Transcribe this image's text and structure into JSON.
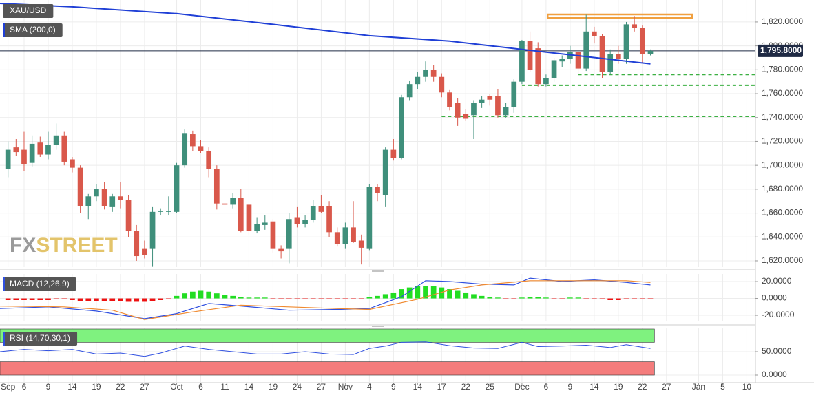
{
  "chart_data": [
    {
      "type": "candlestick",
      "xlim": [
        0,
        94.08
      ],
      "xticks": [
        {
          "value": 1,
          "label": "Sep"
        },
        {
          "value": 3,
          "label": "6"
        },
        {
          "value": 6,
          "label": "9"
        },
        {
          "value": 9,
          "label": "14"
        },
        {
          "value": 12,
          "label": "19"
        },
        {
          "value": 15,
          "label": "22"
        },
        {
          "value": 18,
          "label": "27"
        },
        {
          "value": 22,
          "label": "Oct"
        },
        {
          "value": 25,
          "label": "6"
        },
        {
          "value": 28,
          "label": "11"
        },
        {
          "value": 31,
          "label": "14"
        },
        {
          "value": 34,
          "label": "19"
        },
        {
          "value": 37,
          "label": "24"
        },
        {
          "value": 40,
          "label": "27"
        },
        {
          "value": 43,
          "label": "Nov"
        },
        {
          "value": 46,
          "label": "4"
        },
        {
          "value": 49,
          "label": "9"
        },
        {
          "value": 52,
          "label": "14"
        },
        {
          "value": 55,
          "label": "17"
        },
        {
          "value": 58,
          "label": "22"
        },
        {
          "value": 61,
          "label": "25"
        },
        {
          "value": 65,
          "label": "Dec"
        },
        {
          "value": 68,
          "label": "6"
        },
        {
          "value": 71,
          "label": "9"
        },
        {
          "value": 74,
          "label": "14"
        },
        {
          "value": 77,
          "label": "19"
        },
        {
          "value": 80,
          "label": "22"
        },
        {
          "value": 83,
          "label": "27"
        },
        {
          "value": 87,
          "label": "Jan"
        },
        {
          "value": 90,
          "label": "5"
        },
        {
          "value": 93,
          "label": "10"
        }
      ],
      "ylim": [
        1614.8,
        1838.4
      ],
      "yticks": [
        {
          "value": 1620,
          "label": "1,620.0000"
        },
        {
          "value": 1640,
          "label": "1,640.0000"
        },
        {
          "value": 1660,
          "label": "1,660.0000"
        },
        {
          "value": 1680,
          "label": "1,680.0000"
        },
        {
          "value": 1700,
          "label": "1,700.0000"
        },
        {
          "value": 1720,
          "label": "1,720.0000"
        },
        {
          "value": 1740,
          "label": "1,740.0000"
        },
        {
          "value": 1760,
          "label": "1,760.0000"
        },
        {
          "value": 1780,
          "label": "1,780.0000"
        },
        {
          "value": 1800,
          "label": "1,800.0000"
        },
        {
          "value": 1820,
          "label": "1,820.0000"
        }
      ],
      "grid": true,
      "watermark": [
        "FX",
        "STREET"
      ],
      "current_price": {
        "value": 1795.8,
        "label": "1,795.8000",
        "color": "#1f2a44"
      },
      "levels": [
        {
          "value": 1776,
          "from": 72,
          "color": "#3cb043"
        },
        {
          "value": 1767,
          "from": 65,
          "color": "#3cb043"
        },
        {
          "value": 1741,
          "from": 55,
          "color": "#3cb043"
        }
      ],
      "zone": {
        "low": 1823.4,
        "high": 1826.3,
        "from": 68.2,
        "to": 86.2,
        "color": "#f0a040"
      },
      "series": [
        {
          "name": "XAU/USD",
          "up_color": "#3f8f7b",
          "down_color": "#d9584b",
          "x": [
            1,
            2,
            3,
            4,
            5,
            6,
            7,
            8,
            9,
            10,
            11,
            12,
            13,
            14,
            15,
            16,
            17,
            18,
            19,
            20,
            21,
            22,
            23,
            24,
            25,
            26,
            27,
            28,
            29,
            30,
            31,
            32,
            33,
            34,
            35,
            36,
            37,
            38,
            39,
            40,
            41,
            42,
            43,
            44,
            45,
            46,
            47,
            48,
            49,
            50,
            51,
            52,
            53,
            54,
            55,
            56,
            57,
            58,
            59,
            60,
            61,
            62,
            63,
            64,
            65,
            66,
            67,
            68,
            69,
            70,
            71,
            72,
            73,
            74,
            75,
            76,
            77,
            78,
            79,
            80,
            81
          ],
          "open": [
            1697,
            1715,
            1713,
            1702,
            1719,
            1709,
            1717,
            1725,
            1705,
            1698,
            1666,
            1674,
            1680,
            1665,
            1674,
            1671,
            1645,
            1630,
            1630,
            1661,
            1661,
            1661,
            1700,
            1726,
            1716,
            1712,
            1697,
            1668,
            1667,
            1673,
            1667,
            1645,
            1650,
            1653,
            1630,
            1630,
            1656,
            1651,
            1654,
            1666,
            1666,
            1644,
            1634,
            1648,
            1637,
            1630,
            1682,
            1675,
            1713,
            1706,
            1757,
            1768,
            1774,
            1780,
            1774,
            1761,
            1752,
            1743,
            1742,
            1752,
            1758,
            1758,
            1742,
            1749,
            1770,
            1804,
            1798,
            1768,
            1773,
            1787,
            1789,
            1795,
            1781,
            1812,
            1808,
            1778,
            1793,
            1789,
            1818,
            1815,
            1793
          ],
          "high": [
            1720,
            1722,
            1728,
            1725,
            1724,
            1728,
            1735,
            1728,
            1707,
            1700,
            1676,
            1684,
            1686,
            1676,
            1686,
            1675,
            1650,
            1637,
            1665,
            1664,
            1674,
            1702,
            1730,
            1729,
            1721,
            1715,
            1700,
            1673,
            1677,
            1680,
            1668,
            1656,
            1658,
            1655,
            1633,
            1660,
            1665,
            1658,
            1671,
            1675,
            1670,
            1648,
            1652,
            1670,
            1642,
            1684,
            1684,
            1715,
            1722,
            1759,
            1771,
            1778,
            1787,
            1784,
            1777,
            1763,
            1756,
            1747,
            1754,
            1758,
            1760,
            1764,
            1752,
            1772,
            1805,
            1812,
            1803,
            1776,
            1790,
            1792,
            1800,
            1797,
            1826,
            1816,
            1810,
            1797,
            1800,
            1820,
            1825,
            1817,
            1797
          ],
          "low": [
            1690,
            1708,
            1695,
            1699,
            1707,
            1705,
            1713,
            1700,
            1694,
            1660,
            1655,
            1670,
            1663,
            1661,
            1664,
            1640,
            1620,
            1622,
            1615,
            1658,
            1658,
            1660,
            1698,
            1712,
            1710,
            1690,
            1663,
            1663,
            1664,
            1644,
            1642,
            1643,
            1646,
            1627,
            1622,
            1618,
            1648,
            1648,
            1652,
            1660,
            1640,
            1632,
            1630,
            1635,
            1617,
            1629,
            1670,
            1665,
            1704,
            1705,
            1754,
            1764,
            1770,
            1770,
            1757,
            1746,
            1733,
            1737,
            1722,
            1748,
            1750,
            1740,
            1740,
            1744,
            1768,
            1778,
            1766,
            1766,
            1770,
            1782,
            1785,
            1776,
            1779,
            1802,
            1773,
            1776,
            1785,
            1785,
            1812,
            1786,
            1792
          ],
          "close": [
            1713,
            1711,
            1701,
            1718,
            1709,
            1717,
            1725,
            1703,
            1698,
            1666,
            1674,
            1680,
            1666,
            1674,
            1671,
            1645,
            1624,
            1625,
            1661,
            1662,
            1662,
            1700,
            1727,
            1716,
            1712,
            1697,
            1668,
            1667,
            1673,
            1645,
            1645,
            1651,
            1652,
            1630,
            1628,
            1655,
            1651,
            1654,
            1666,
            1661,
            1644,
            1634,
            1648,
            1636,
            1631,
            1682,
            1677,
            1713,
            1706,
            1757,
            1768,
            1774,
            1780,
            1774,
            1761,
            1749,
            1740,
            1739,
            1752,
            1755,
            1755,
            1742,
            1749,
            1770,
            1804,
            1780,
            1768,
            1773,
            1788,
            1789,
            1795,
            1781,
            1812,
            1808,
            1778,
            1793,
            1789,
            1818,
            1815,
            1793,
            1795.8
          ]
        },
        {
          "name": "SMA (200,0)",
          "type": "line",
          "color": "#1f3fd6",
          "x": [
            0,
            9,
            22,
            34,
            46,
            56,
            65,
            73,
            81
          ],
          "values": [
            1835.5,
            1832.7,
            1827,
            1818,
            1808.5,
            1804,
            1797,
            1791,
            1785
          ]
        }
      ]
    },
    {
      "type": "macd",
      "title": "MACD (12,26,9)",
      "ylim": [
        -27.3,
        29
      ],
      "yticks": [
        {
          "value": -20,
          "label": "-20.0000"
        },
        {
          "value": 0,
          "label": "0.0000"
        },
        {
          "value": 20,
          "label": "20.0000"
        }
      ],
      "histogram": {
        "pos_color": "#22dd22",
        "neg_color": "#ee1111",
        "values": [
          -2,
          -2,
          -2,
          -2,
          -2,
          -2,
          -1,
          -1,
          -2,
          -3,
          -3,
          -3,
          -3,
          -3,
          -3,
          -4,
          -4,
          -4,
          -3,
          -2,
          -1,
          3,
          6,
          8,
          9,
          8,
          6,
          4,
          3,
          2,
          1,
          1,
          1,
          -1,
          -1,
          -1,
          -1,
          -1,
          -1,
          -1,
          -1,
          -1,
          -1,
          -1,
          -1,
          2,
          3,
          5,
          7,
          11,
          13,
          15,
          15,
          15,
          13,
          11,
          9,
          7,
          5,
          3,
          2,
          1,
          -1,
          -1,
          1,
          2,
          2,
          1,
          -1,
          -1,
          1,
          1,
          -1,
          -1,
          -1,
          -2,
          -2,
          -1,
          -1,
          -1,
          -1
        ]
      },
      "series": [
        {
          "color": "#3050e0",
          "x": [
            0,
            6,
            12,
            18,
            22,
            26,
            30,
            36,
            42,
            46,
            50,
            53,
            56,
            60,
            64,
            66,
            70,
            74,
            78,
            81
          ],
          "values": [
            -12,
            -10,
            -15,
            -24,
            -18,
            -6,
            -9,
            -14,
            -13,
            -12,
            2,
            21,
            20,
            17,
            16,
            24,
            20,
            22,
            19,
            16
          ]
        },
        {
          "color": "#f08a30",
          "x": [
            0,
            8,
            14,
            18,
            24,
            30,
            36,
            42,
            46,
            52,
            56,
            60,
            66,
            72,
            78,
            81
          ],
          "values": [
            -9,
            -10,
            -14,
            -25,
            -16,
            -8,
            -10,
            -12,
            -13,
            -1,
            10,
            16,
            21,
            21,
            21,
            19
          ]
        }
      ]
    },
    {
      "type": "rsi",
      "title": "RSI (14,70,30,1)",
      "ylim": [
        -14.7,
        100
      ],
      "yticks": [
        {
          "value": 0,
          "label": "0.0000"
        },
        {
          "value": 50,
          "label": "50.0000"
        }
      ],
      "zones": [
        {
          "low": 70,
          "high": 100,
          "color": "#7ff27f"
        },
        {
          "low": 0,
          "high": 30,
          "color": "#f47c7c"
        }
      ],
      "series": [
        {
          "color": "#3050e0",
          "x": [
            0,
            3,
            6,
            9,
            12,
            15,
            18,
            20,
            23,
            26,
            29,
            32,
            35,
            38,
            41,
            44,
            46,
            48,
            50,
            53,
            56,
            59,
            62,
            65,
            67,
            70,
            73,
            76,
            78,
            81
          ],
          "values": [
            50,
            55,
            52,
            55,
            45,
            47,
            40,
            47,
            62,
            55,
            50,
            45,
            45,
            50,
            45,
            44,
            57,
            62,
            70,
            71,
            63,
            58,
            57,
            70,
            61,
            62,
            64,
            59,
            65,
            57
          ]
        }
      ]
    }
  ]
}
